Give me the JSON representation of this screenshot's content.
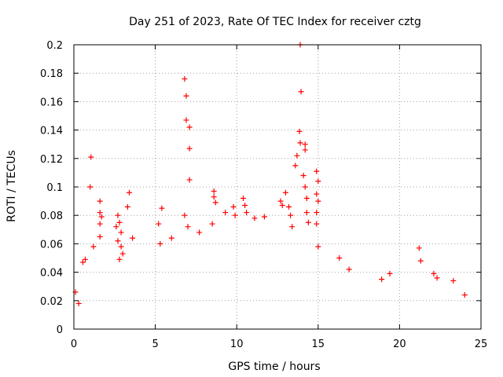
{
  "chart_data": {
    "type": "scatter",
    "title": "Day 251 of 2023, Rate Of TEC Index for receiver cztg",
    "xlabel": "GPS time / hours",
    "ylabel": "ROTI / TECUs",
    "xlim": [
      0,
      25
    ],
    "ylim": [
      0,
      0.2
    ],
    "xticks": [
      "0",
      "5",
      "10",
      "15",
      "20",
      "25"
    ],
    "yticks": [
      "0",
      "0.02",
      "0.04",
      "0.06",
      "0.08",
      "0.1",
      "0.12",
      "0.14",
      "0.16",
      "0.18",
      "0.2"
    ],
    "grid": true,
    "marker": "+",
    "color": "#ff0000",
    "series": [
      {
        "points": [
          [
            1.05,
            0.121
          ],
          [
            1.0,
            0.1
          ],
          [
            0.55,
            0.047
          ],
          [
            0.7,
            0.049
          ],
          [
            1.2,
            0.058
          ],
          [
            1.6,
            0.09
          ],
          [
            1.6,
            0.082
          ],
          [
            1.7,
            0.079
          ],
          [
            1.6,
            0.074
          ],
          [
            1.6,
            0.065
          ],
          [
            2.7,
            0.08
          ],
          [
            2.8,
            0.075
          ],
          [
            2.6,
            0.072
          ],
          [
            2.9,
            0.068
          ],
          [
            2.7,
            0.062
          ],
          [
            2.9,
            0.058
          ],
          [
            3.0,
            0.053
          ],
          [
            2.8,
            0.049
          ],
          [
            3.4,
            0.096
          ],
          [
            3.3,
            0.086
          ],
          [
            3.6,
            0.064
          ],
          [
            5.4,
            0.085
          ],
          [
            5.2,
            0.074
          ],
          [
            5.3,
            0.06
          ],
          [
            6.0,
            0.064
          ],
          [
            6.8,
            0.176
          ],
          [
            6.9,
            0.164
          ],
          [
            6.9,
            0.147
          ],
          [
            7.1,
            0.142
          ],
          [
            7.1,
            0.127
          ],
          [
            7.1,
            0.105
          ],
          [
            6.8,
            0.08
          ],
          [
            7.0,
            0.072
          ],
          [
            7.7,
            0.068
          ],
          [
            8.5,
            0.074
          ],
          [
            8.6,
            0.097
          ],
          [
            8.6,
            0.093
          ],
          [
            8.7,
            0.089
          ],
          [
            9.3,
            0.082
          ],
          [
            9.8,
            0.086
          ],
          [
            9.9,
            0.08
          ],
          [
            10.4,
            0.092
          ],
          [
            10.5,
            0.087
          ],
          [
            10.6,
            0.082
          ],
          [
            11.1,
            0.078
          ],
          [
            11.7,
            0.079
          ],
          [
            12.7,
            0.09
          ],
          [
            12.8,
            0.087
          ],
          [
            13.0,
            0.096
          ],
          [
            13.2,
            0.086
          ],
          [
            13.3,
            0.08
          ],
          [
            13.4,
            0.072
          ],
          [
            13.9,
            0.2
          ],
          [
            13.95,
            0.167
          ],
          [
            13.85,
            0.139
          ],
          [
            14.2,
            0.13
          ],
          [
            14.2,
            0.126
          ],
          [
            13.9,
            0.131
          ],
          [
            13.6,
            0.115
          ],
          [
            13.7,
            0.122
          ],
          [
            14.1,
            0.108
          ],
          [
            14.2,
            0.1
          ],
          [
            14.3,
            0.092
          ],
          [
            14.3,
            0.082
          ],
          [
            14.4,
            0.075
          ],
          [
            14.9,
            0.111
          ],
          [
            15.0,
            0.104
          ],
          [
            14.9,
            0.095
          ],
          [
            15.0,
            0.09
          ],
          [
            14.9,
            0.082
          ],
          [
            14.9,
            0.074
          ],
          [
            15.0,
            0.058
          ],
          [
            16.3,
            0.05
          ],
          [
            16.9,
            0.042
          ],
          [
            18.9,
            0.035
          ],
          [
            19.4,
            0.039
          ],
          [
            21.2,
            0.057
          ],
          [
            21.3,
            0.048
          ],
          [
            22.1,
            0.039
          ],
          [
            22.3,
            0.036
          ],
          [
            23.3,
            0.034
          ],
          [
            0.1,
            0.026
          ],
          [
            0.3,
            0.018
          ],
          [
            24.0,
            0.024
          ]
        ]
      }
    ]
  }
}
